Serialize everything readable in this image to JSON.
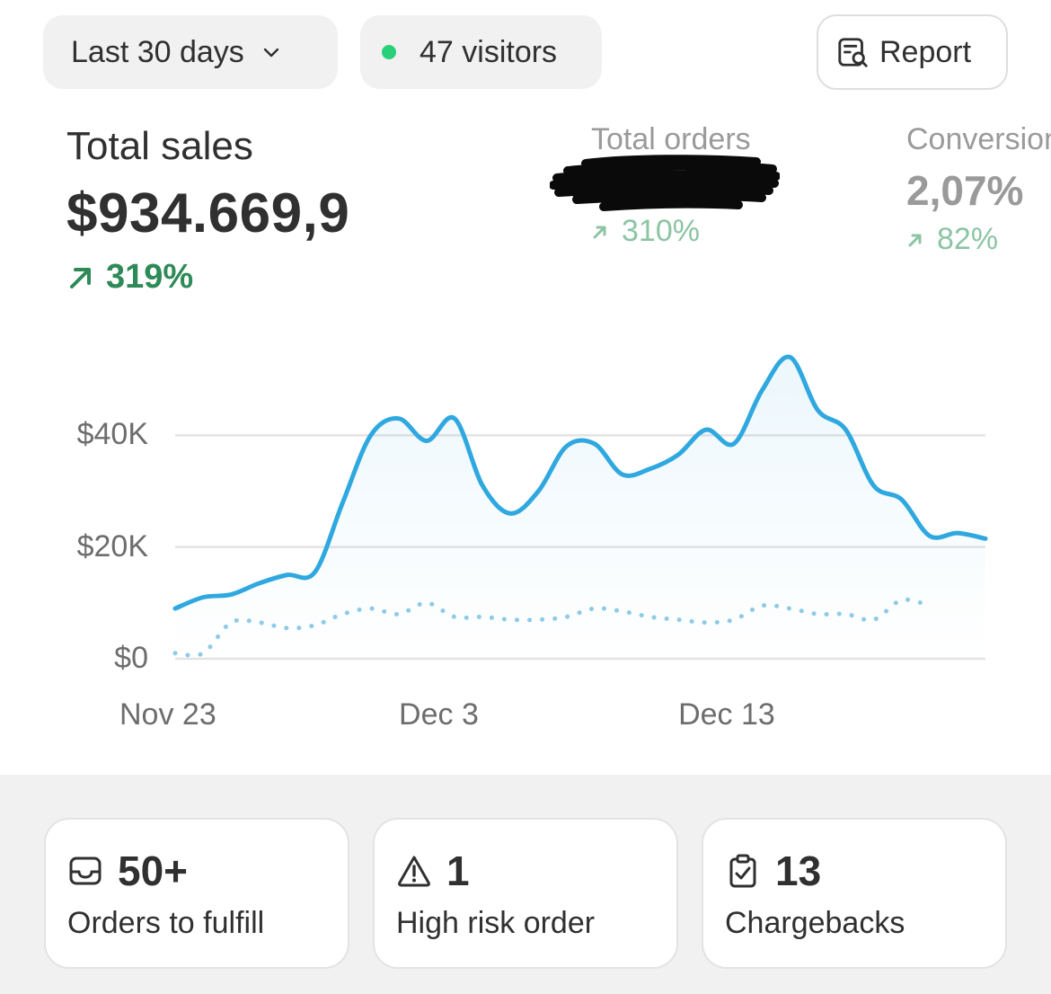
{
  "toolbar": {
    "date_range": "Last 30 days",
    "visitors": "47 visitors",
    "report_label": "Report"
  },
  "metrics": {
    "total_sales": {
      "label": "Total sales",
      "value": "$934.669,9",
      "delta": "319%"
    },
    "total_orders": {
      "label": "Total orders",
      "delta": "310%"
    },
    "conversion": {
      "label": "Conversion",
      "value": "2,07%",
      "delta": "82%"
    }
  },
  "colors": {
    "primary_line": "#2fa8e0",
    "comparison_line": "#8fcbe6",
    "positive": "#2e8a57",
    "positive_muted": "#8cc4a4",
    "visitor_dot": "#29d07a"
  },
  "chart_data": {
    "type": "line",
    "x_ticks": [
      "Nov 23",
      "Dec 3",
      "Dec 13"
    ],
    "y_ticks": [
      "$0",
      "$20K",
      "$40K"
    ],
    "ylim": [
      0,
      60000
    ],
    "grid": true,
    "series": [
      {
        "style": "solid",
        "values": [
          9000,
          11000,
          11500,
          13500,
          15000,
          15500,
          28000,
          40000,
          43000,
          39000,
          43000,
          31000,
          26000,
          30000,
          38000,
          38500,
          33000,
          34000,
          36500,
          41000,
          38500,
          48000,
          54000,
          44500,
          41000,
          31000,
          28500,
          22000,
          22500,
          21500
        ]
      },
      {
        "style": "dotted",
        "values": [
          1000,
          1000,
          6500,
          6500,
          5500,
          6000,
          8000,
          9000,
          8000,
          10000,
          7500,
          7500,
          7000,
          7000,
          7500,
          9000,
          8500,
          7500,
          7000,
          6500,
          7000,
          9500,
          9000,
          8000,
          8000,
          7000,
          10500,
          9500
        ]
      }
    ]
  },
  "cards": [
    {
      "count": "50+",
      "caption": "Orders to fulfill"
    },
    {
      "count": "1",
      "caption": "High risk order"
    },
    {
      "count": "13",
      "caption": "Chargebacks"
    }
  ]
}
